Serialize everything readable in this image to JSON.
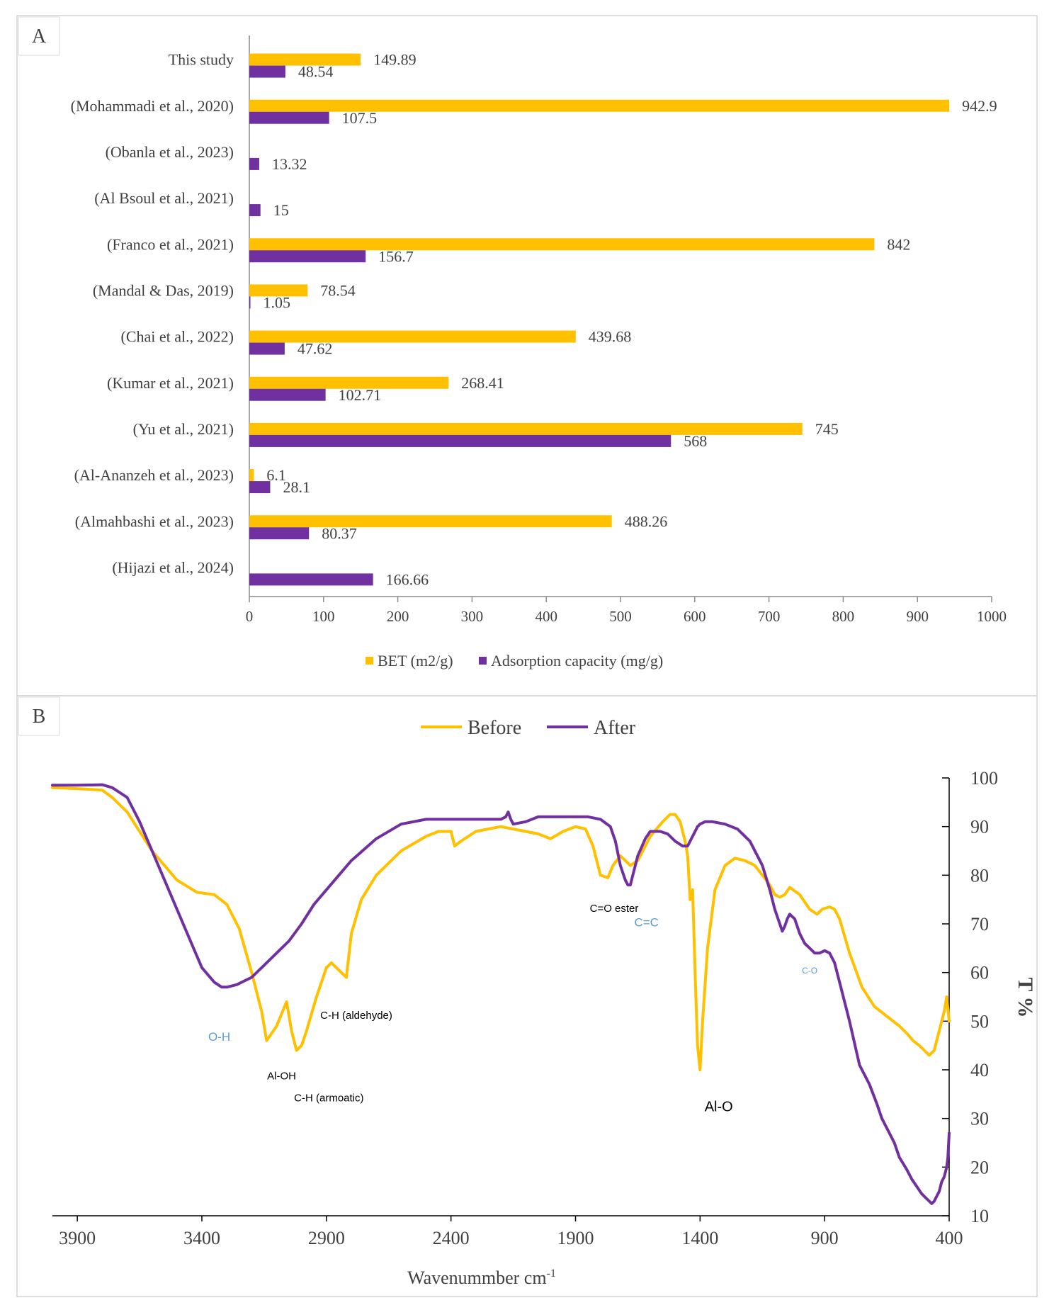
{
  "colors": {
    "bet": "#ffc000",
    "adsorption": "#7030a0",
    "before": "#ffc000",
    "after": "#7030a0",
    "annot_blue": "#5b9bd5",
    "annot_black": "#000000"
  },
  "chart_data": [
    {
      "panel_label": "A",
      "type": "bar",
      "orientation": "horizontal",
      "categories": [
        "This study",
        "(Mohammadi et al., 2020)",
        "(Obanla et al., 2023)",
        "(Al Bsoul et al., 2021)",
        "(Franco et al., 2021)",
        "(Mandal & Das, 2019)",
        "(Chai et al., 2022)",
        "(Kumar et al., 2021)",
        "(Yu et al., 2021)",
        "(Al-Ananzeh et al., 2023)",
        "(Almahbashi et al., 2023)",
        "(Hijazi et al., 2024)"
      ],
      "series": [
        {
          "name": "BET (m2/g)",
          "values": [
            149.89,
            942.9,
            null,
            null,
            842,
            78.54,
            439.68,
            268.41,
            745,
            6.1,
            488.26,
            null
          ]
        },
        {
          "name": "Adsorption capacity (mg/g)",
          "values": [
            48.54,
            107.5,
            13.32,
            15,
            156.7,
            1.05,
            47.62,
            102.71,
            568,
            28.1,
            80.37,
            166.66
          ]
        }
      ],
      "xlim": [
        0,
        1000
      ],
      "xticks": [
        "0",
        "100",
        "200",
        "300",
        "400",
        "500",
        "600",
        "700",
        "800",
        "900",
        "1000"
      ],
      "grid": false,
      "legend": "bottom"
    },
    {
      "panel_label": "B",
      "type": "line",
      "xlabel": "Wavenummber cm",
      "xlabel_sup": "-1",
      "ylabel": "T %",
      "xlim": [
        4000,
        400
      ],
      "ylim": [
        10,
        100
      ],
      "xticks": [
        "3900",
        "3400",
        "2900",
        "2400",
        "1900",
        "1400",
        "900",
        "400"
      ],
      "yticks": [
        "10",
        "20",
        "30",
        "40",
        "50",
        "60",
        "70",
        "80",
        "90",
        "100"
      ],
      "legend": "top",
      "grid": false,
      "series": [
        {
          "name": "Before",
          "x": [
            4000,
            3900,
            3800,
            3760,
            3700,
            3600,
            3500,
            3420,
            3350,
            3300,
            3250,
            3200,
            3160,
            3140,
            3100,
            3060,
            3040,
            3020,
            3000,
            2980,
            2940,
            2900,
            2880,
            2840,
            2820,
            2800,
            2760,
            2700,
            2600,
            2500,
            2450,
            2400,
            2385,
            2360,
            2300,
            2200,
            2100,
            2050,
            2000,
            1950,
            1900,
            1860,
            1830,
            1800,
            1770,
            1750,
            1720,
            1700,
            1680,
            1650,
            1600,
            1550,
            1520,
            1500,
            1480,
            1460,
            1450,
            1440,
            1430,
            1420,
            1410,
            1400,
            1390,
            1370,
            1340,
            1300,
            1260,
            1220,
            1180,
            1150,
            1120,
            1100,
            1080,
            1060,
            1040,
            1000,
            960,
            930,
            910,
            880,
            860,
            840,
            800,
            750,
            700,
            650,
            600,
            570,
            545,
            520,
            500,
            480,
            460,
            450,
            440,
            430,
            420,
            410,
            400
          ],
          "y": [
            98,
            97.8,
            97.5,
            96,
            93,
            85,
            79,
            76.5,
            76,
            74,
            69,
            60,
            52,
            46,
            49,
            54,
            48,
            44,
            45,
            48,
            55,
            61,
            62,
            60,
            59,
            68,
            75,
            80,
            85,
            88,
            89,
            89,
            86,
            87,
            89,
            90,
            89,
            88.5,
            87.5,
            89,
            90,
            89.5,
            86,
            80,
            79.5,
            82,
            84,
            83,
            82,
            83,
            88,
            91,
            92.5,
            92.5,
            91,
            87,
            84,
            75,
            77,
            60,
            45,
            40,
            50,
            65,
            77,
            82,
            83.5,
            83,
            82,
            80,
            78,
            76,
            75.5,
            76,
            77.5,
            76,
            73,
            72,
            73,
            73.5,
            73,
            71,
            64,
            57,
            53,
            51,
            49,
            47.5,
            46,
            45,
            44,
            43,
            44,
            46,
            48,
            50,
            52,
            55,
            50
          ]
        },
        {
          "name": "After",
          "x": [
            4000,
            3900,
            3800,
            3760,
            3700,
            3650,
            3600,
            3550,
            3500,
            3450,
            3400,
            3350,
            3320,
            3300,
            3260,
            3200,
            3150,
            3100,
            3050,
            3000,
            2950,
            2900,
            2800,
            2700,
            2600,
            2500,
            2400,
            2300,
            2200,
            2180,
            2170,
            2160,
            2150,
            2100,
            2050,
            2000,
            1950,
            1900,
            1850,
            1800,
            1760,
            1740,
            1720,
            1700,
            1690,
            1680,
            1670,
            1650,
            1620,
            1600,
            1560,
            1530,
            1500,
            1470,
            1450,
            1430,
            1410,
            1400,
            1380,
            1350,
            1300,
            1250,
            1200,
            1150,
            1120,
            1100,
            1080,
            1070,
            1060,
            1050,
            1040,
            1020,
            1000,
            980,
            960,
            940,
            920,
            900,
            880,
            860,
            840,
            800,
            760,
            720,
            690,
            670,
            650,
            620,
            600,
            570,
            550,
            530,
            510,
            490,
            480,
            470,
            460,
            450,
            440,
            430,
            420,
            410,
            405,
            400
          ],
          "y": [
            98.5,
            98.5,
            98.6,
            98,
            96,
            91,
            85,
            79,
            73,
            67,
            61,
            58,
            57,
            57,
            57.5,
            59,
            61.5,
            64,
            66.5,
            70,
            74,
            77,
            83,
            87.5,
            90.5,
            91.5,
            91.5,
            91.5,
            91.5,
            92,
            93,
            91.5,
            90.5,
            91,
            92,
            92,
            92,
            92,
            92,
            91.5,
            90,
            87,
            82,
            79,
            78,
            78,
            80,
            84,
            87.5,
            89,
            89,
            88.5,
            87,
            86,
            86,
            88,
            90,
            90.5,
            91,
            91,
            90.5,
            89.5,
            87,
            82,
            77,
            73,
            70,
            68.5,
            69.5,
            71,
            72,
            71,
            68,
            66,
            65,
            64,
            64,
            64.5,
            64,
            62,
            58,
            50,
            41,
            37,
            33,
            30,
            28,
            25,
            22,
            19.5,
            17.5,
            16,
            14.5,
            13.5,
            13,
            12.5,
            13,
            14,
            15,
            17,
            18,
            20,
            22,
            27
          ]
        }
      ],
      "annotations": [
        {
          "text": "O-H",
          "x": 3330,
          "y": 46,
          "color": "blue"
        },
        {
          "text": "Al-OH",
          "x": 3080,
          "y": 38,
          "color": "black"
        },
        {
          "text": "C-H (armoatic)",
          "x": 2890,
          "y": 33.5,
          "color": "black"
        },
        {
          "text": "C-H (aldehyde)",
          "x": 2780,
          "y": 50.5,
          "color": "black"
        },
        {
          "text": "C=O ester",
          "x": 1745,
          "y": 72.5,
          "color": "black"
        },
        {
          "text": "C=C",
          "x": 1615,
          "y": 69.5,
          "color": "blue"
        },
        {
          "text": "Al-O",
          "x": 1325,
          "y": 31.5,
          "color": "black"
        },
        {
          "text": "C-O",
          "x": 960,
          "y": 59.8,
          "color": "blue"
        }
      ]
    }
  ]
}
